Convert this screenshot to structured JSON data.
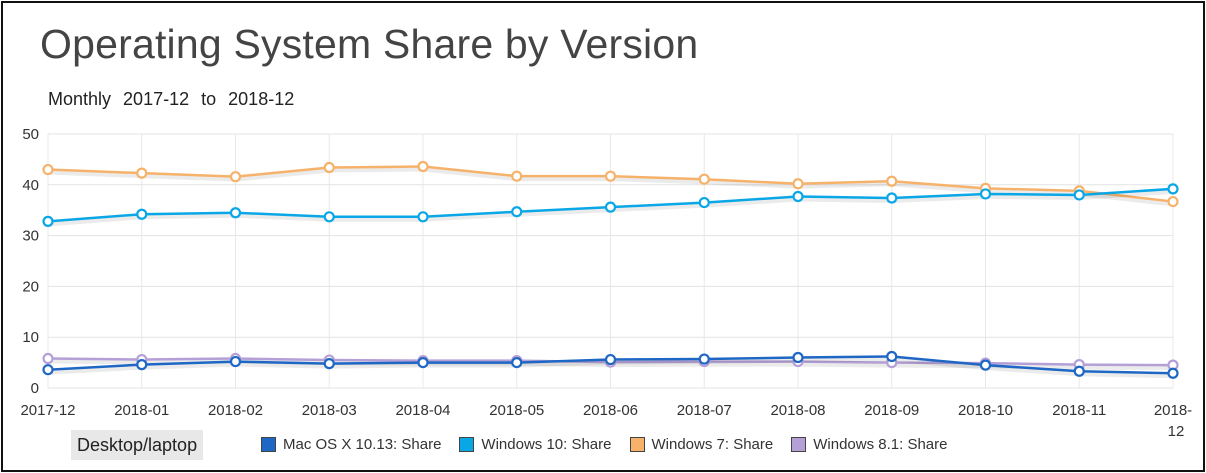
{
  "title": "Operating System Share by Version",
  "subtitle": {
    "period": "Monthly",
    "from": "2017-12",
    "to_word": "to",
    "to": "2018-12"
  },
  "device_filter": "Desktop/laptop",
  "legend": [
    {
      "label": "Mac OS X 10.13: Share",
      "color": "#1f67c4"
    },
    {
      "label": "Windows 10: Share",
      "color": "#0aa7e6"
    },
    {
      "label": "Windows 7: Share",
      "color": "#f6b26b"
    },
    {
      "label": "Windows 8.1: Share",
      "color": "#b4a0d6"
    }
  ],
  "chart_data": {
    "type": "line",
    "title": "Operating System Share by Version",
    "x": [
      "2017-12",
      "2018-01",
      "2018-02",
      "2018-03",
      "2018-04",
      "2018-05",
      "2018-06",
      "2018-07",
      "2018-08",
      "2018-09",
      "2018-10",
      "2018-11",
      "2018-12"
    ],
    "ylim": [
      0,
      50
    ],
    "yticks": [
      0,
      10,
      20,
      30,
      40,
      50
    ],
    "grid": true,
    "legend_position": "bottom",
    "series": [
      {
        "name": "Mac OS X 10.13: Share",
        "color": "#1f67c4",
        "values": [
          3.6,
          4.6,
          5.2,
          4.8,
          5.0,
          5.0,
          5.6,
          5.7,
          6.0,
          6.2,
          4.5,
          3.3,
          2.9
        ]
      },
      {
        "name": "Windows 10: Share",
        "color": "#0aa7e6",
        "values": [
          32.8,
          34.2,
          34.5,
          33.7,
          33.7,
          34.7,
          35.6,
          36.5,
          37.7,
          37.4,
          38.2,
          38.0,
          39.2
        ]
      },
      {
        "name": "Windows 7: Share",
        "color": "#f6b26b",
        "values": [
          43.0,
          42.3,
          41.6,
          43.4,
          43.6,
          41.7,
          41.7,
          41.1,
          40.2,
          40.7,
          39.3,
          38.8,
          36.7
        ]
      },
      {
        "name": "Windows 8.1: Share",
        "color": "#b4a0d6",
        "values": [
          5.8,
          5.6,
          5.8,
          5.5,
          5.4,
          5.4,
          5.1,
          5.2,
          5.2,
          5.0,
          4.9,
          4.6,
          4.5
        ]
      }
    ]
  }
}
